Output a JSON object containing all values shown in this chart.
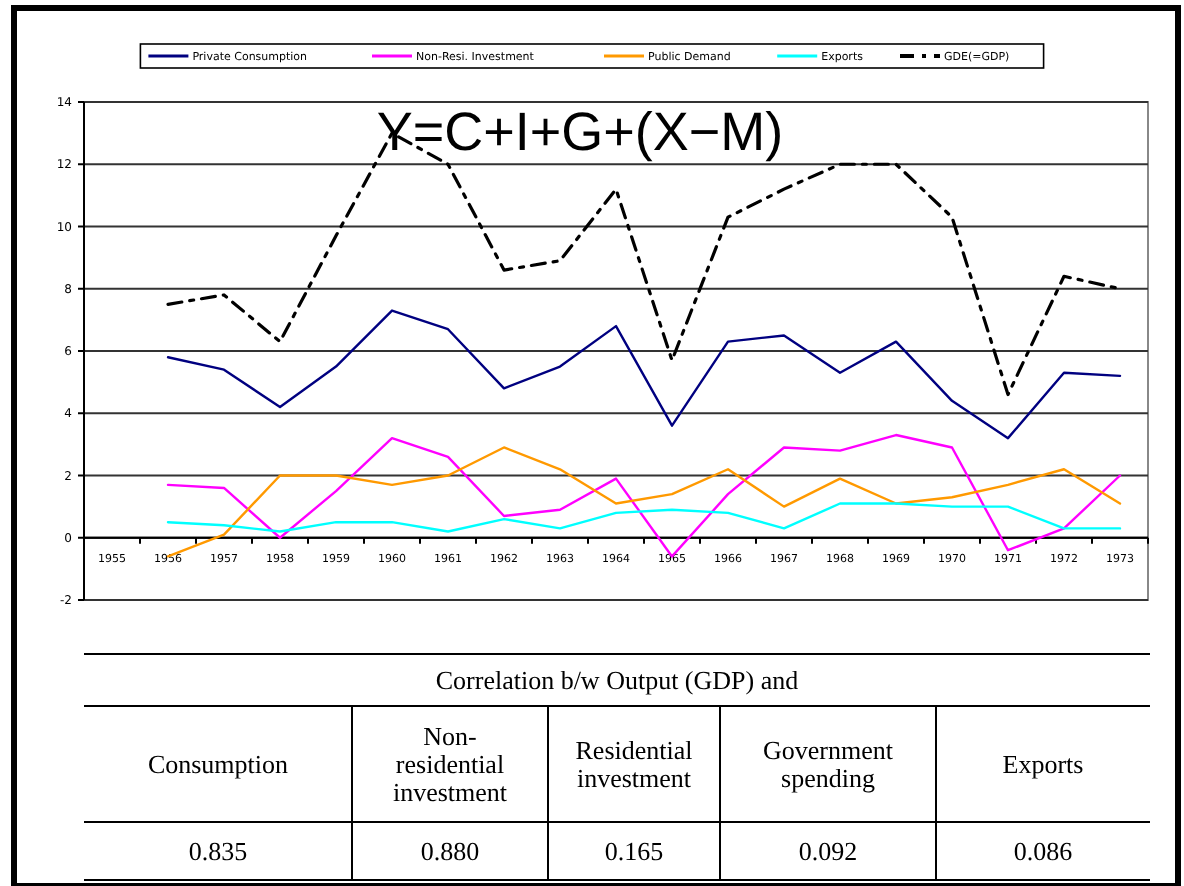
{
  "chart_data": [
    {
      "type": "line",
      "title": "Y=C+I+G+(X−M)",
      "categories": [
        "1955",
        "1956",
        "1957",
        "1958",
        "1959",
        "1960",
        "1961",
        "1962",
        "1963",
        "1964",
        "1965",
        "1966",
        "1967",
        "1968",
        "1969",
        "1970",
        "1971",
        "1972",
        "1973"
      ],
      "series": [
        {
          "name": "Private Consumption",
          "color": "#000080",
          "line_style": "solid",
          "values": [
            null,
            5.8,
            5.4,
            4.2,
            5.5,
            7.3,
            6.7,
            4.8,
            5.5,
            6.8,
            3.6,
            6.3,
            6.5,
            5.3,
            6.3,
            4.4,
            3.2,
            5.3,
            5.2
          ]
        },
        {
          "name": "Non-Resi. Investment",
          "color": "#ff00ff",
          "line_style": "solid",
          "values": [
            null,
            1.7,
            1.6,
            0.0,
            1.5,
            3.2,
            2.6,
            0.7,
            0.9,
            1.9,
            -0.6,
            1.4,
            2.9,
            2.8,
            3.3,
            2.9,
            -0.4,
            0.3,
            2.0
          ]
        },
        {
          "name": "Public Demand",
          "color": "#ff9900",
          "line_style": "solid",
          "values": [
            null,
            -0.6,
            0.1,
            2.0,
            2.0,
            1.7,
            2.0,
            2.9,
            2.2,
            1.1,
            1.4,
            2.2,
            1.0,
            1.9,
            1.1,
            1.3,
            1.7,
            2.2,
            1.1
          ]
        },
        {
          "name": "Exports",
          "color": "#00ffff",
          "line_style": "solid",
          "values": [
            null,
            0.5,
            0.4,
            0.2,
            0.5,
            0.5,
            0.2,
            0.6,
            0.3,
            0.8,
            0.9,
            0.8,
            0.3,
            1.1,
            1.1,
            1.0,
            1.0,
            0.3,
            0.3
          ]
        },
        {
          "name": "GDE(=GDP)",
          "color": "#000000",
          "line_style": "dashed",
          "values": [
            null,
            7.5,
            7.8,
            6.3,
            9.7,
            13.0,
            12.0,
            8.6,
            8.9,
            11.2,
            5.7,
            10.3,
            11.2,
            12.0,
            12.0,
            10.3,
            4.6,
            8.4,
            8.0
          ]
        }
      ],
      "ylim": [
        -2,
        14
      ],
      "yticks": [
        -2,
        0,
        2,
        4,
        6,
        8,
        10,
        12,
        14
      ],
      "grid": "y",
      "legend": "top"
    },
    {
      "type": "other",
      "title": "Correlation b/w Output (GDP) and",
      "categories": [
        "Consumption",
        "Non-residential investment",
        "Residential investment",
        "Government spending",
        "Exports"
      ],
      "value_labels": [
        "0.835",
        "0.880",
        "0.165",
        "0.092",
        "0.086"
      ]
    }
  ]
}
